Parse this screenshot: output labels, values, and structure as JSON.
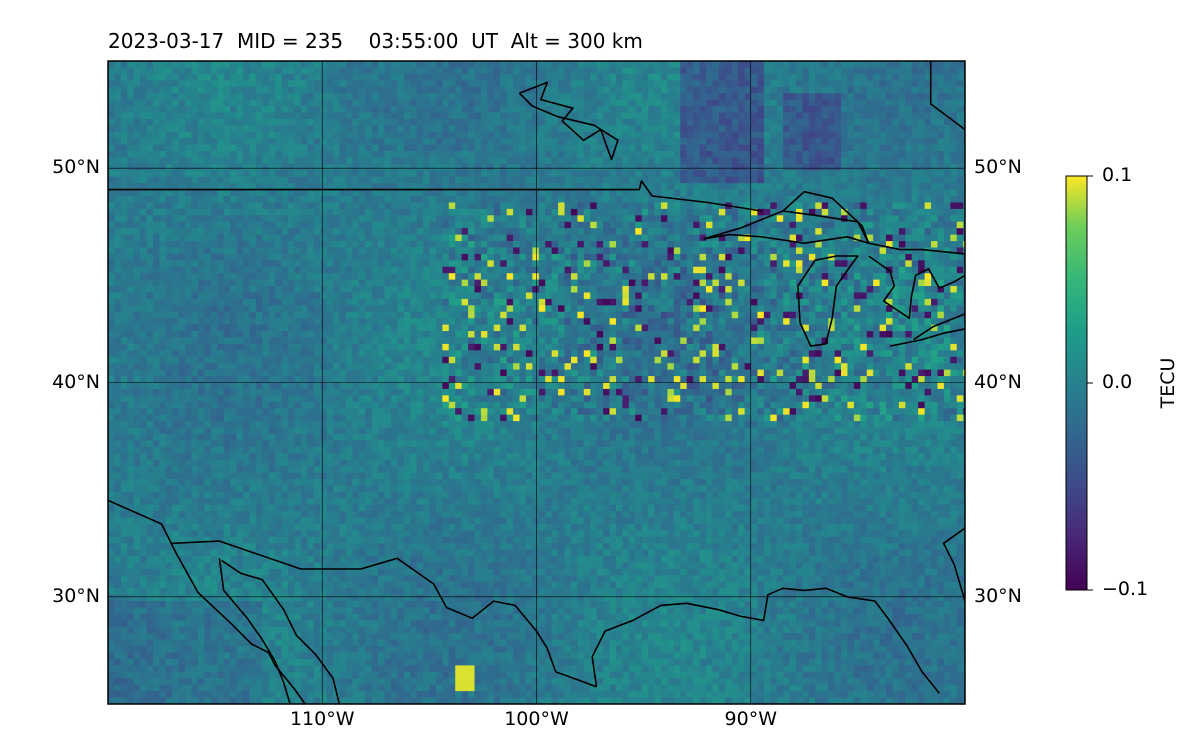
{
  "title": {
    "date": "2023-03-17",
    "mid": "MID = 235",
    "time": "03:55:00  UT",
    "alt": "Alt = 300 km"
  },
  "map": {
    "lon_range": [
      -120,
      -80
    ],
    "lat_range": [
      25,
      55
    ],
    "grid": true,
    "colormap": "viridis",
    "lat_gridlines": [
      {
        "value": 50,
        "label": "50°N"
      },
      {
        "value": 40,
        "label": "40°N"
      },
      {
        "value": 30,
        "label": "30°N"
      }
    ],
    "lon_gridlines": [
      {
        "value": -110,
        "label": "110°W"
      },
      {
        "value": -100,
        "label": "100°W"
      },
      {
        "value": -90,
        "label": "90°W"
      }
    ],
    "coastlines": [
      {
        "name": "us-canada-border",
        "points": [
          [
            -120,
            49
          ],
          [
            -95.2,
            49
          ],
          [
            -95.1,
            49.4
          ],
          [
            -94.6,
            48.7
          ],
          [
            -92,
            48.4
          ],
          [
            -89.5,
            48
          ]
        ]
      },
      {
        "name": "lake-superior-west",
        "points": [
          [
            -92.2,
            46.7
          ],
          [
            -90.5,
            47.2
          ],
          [
            -88.5,
            48
          ],
          [
            -87.5,
            48.9
          ],
          [
            -86.2,
            48.6
          ],
          [
            -84.8,
            47.3
          ],
          [
            -84.5,
            46.5
          ],
          [
            -85.5,
            46.8
          ],
          [
            -87.5,
            46.5
          ],
          [
            -89.5,
            46.8
          ],
          [
            -91,
            46.9
          ],
          [
            -92.2,
            46.7
          ]
        ]
      },
      {
        "name": "lake-superior-east",
        "points": [
          [
            -88.5,
            48
          ],
          [
            -87,
            47.8
          ],
          [
            -85,
            47.5
          ],
          [
            -84.5,
            46.5
          ],
          [
            -83,
            46.2
          ],
          [
            -82,
            46.2
          ],
          [
            -80,
            46
          ]
        ]
      },
      {
        "name": "lake-michigan",
        "points": [
          [
            -87.8,
            44.5
          ],
          [
            -87.7,
            42.8
          ],
          [
            -87.2,
            41.7
          ],
          [
            -86.5,
            41.8
          ],
          [
            -86.2,
            43
          ],
          [
            -86,
            44.5
          ],
          [
            -85.3,
            45.5
          ],
          [
            -85,
            45.9
          ],
          [
            -86,
            45.9
          ],
          [
            -87,
            45.7
          ],
          [
            -87.8,
            44.5
          ]
        ]
      },
      {
        "name": "lake-huron",
        "points": [
          [
            -84.5,
            45.9
          ],
          [
            -83.5,
            45.2
          ],
          [
            -83.3,
            44.5
          ],
          [
            -83.8,
            43.8
          ],
          [
            -82.6,
            43
          ],
          [
            -82.5,
            44
          ],
          [
            -82.3,
            45
          ],
          [
            -81.7,
            45.3
          ],
          [
            -81.2,
            44.4
          ],
          [
            -80.5,
            44.7
          ],
          [
            -80,
            45
          ]
        ]
      },
      {
        "name": "lake-erie",
        "points": [
          [
            -83.5,
            41.7
          ],
          [
            -82,
            42
          ],
          [
            -81,
            42.3
          ],
          [
            -80,
            42.5
          ]
        ]
      },
      {
        "name": "lake-ontario",
        "points": [
          [
            -80,
            43.2
          ],
          [
            -81.5,
            42.6
          ],
          [
            -82.4,
            42
          ]
        ]
      },
      {
        "name": "hudson-bay-inlet",
        "points": [
          [
            -100.8,
            53.5
          ],
          [
            -99.5,
            54
          ],
          [
            -99.8,
            53.2
          ],
          [
            -98.3,
            52.8
          ],
          [
            -98.8,
            52.2
          ],
          [
            -97.8,
            51.3
          ],
          [
            -97,
            51.8
          ],
          [
            -96.5,
            50.4
          ],
          [
            -96.2,
            51.3
          ],
          [
            -97.3,
            52
          ],
          [
            -99,
            52.4
          ],
          [
            -100.2,
            52.9
          ],
          [
            -100.8,
            53.5
          ]
        ]
      },
      {
        "name": "james-bay-edge",
        "points": [
          [
            -81.6,
            55
          ],
          [
            -81.6,
            53
          ],
          [
            -80,
            51.8
          ]
        ]
      },
      {
        "name": "gulf-coast",
        "points": [
          [
            -97.2,
            25.8
          ],
          [
            -97.4,
            27.2
          ],
          [
            -96.8,
            28.4
          ],
          [
            -95.5,
            28.9
          ],
          [
            -94.2,
            29.6
          ],
          [
            -93,
            29.7
          ],
          [
            -91.5,
            29.4
          ],
          [
            -90.5,
            29.1
          ],
          [
            -89.4,
            28.9
          ],
          [
            -89.2,
            30.1
          ],
          [
            -88.5,
            30.4
          ],
          [
            -87.5,
            30.3
          ],
          [
            -86.5,
            30.4
          ],
          [
            -85.5,
            30
          ],
          [
            -84.2,
            29.8
          ],
          [
            -83.6,
            29
          ],
          [
            -82.7,
            27.7
          ],
          [
            -82,
            26.5
          ],
          [
            -81.2,
            25.5
          ]
        ]
      },
      {
        "name": "florida-east",
        "points": [
          [
            -80,
            29.8
          ],
          [
            -80.5,
            31.5
          ],
          [
            -81,
            32.5
          ],
          [
            -80,
            33.2
          ]
        ]
      },
      {
        "name": "us-mexico-border",
        "points": [
          [
            -117,
            32.5
          ],
          [
            -114.8,
            32.6
          ],
          [
            -111,
            31.3
          ],
          [
            -108.2,
            31.3
          ],
          [
            -106.5,
            31.8
          ],
          [
            -104.8,
            30.6
          ],
          [
            -104.2,
            29.5
          ],
          [
            -103,
            29
          ],
          [
            -102,
            29.8
          ],
          [
            -101,
            29.6
          ],
          [
            -100,
            28.4
          ],
          [
            -99.5,
            27.6
          ],
          [
            -99.1,
            26.5
          ],
          [
            -98,
            26.1
          ],
          [
            -97.2,
            25.8
          ]
        ]
      },
      {
        "name": "pacific-coast",
        "points": [
          [
            -120,
            34.5
          ],
          [
            -117.5,
            33.4
          ],
          [
            -116.8,
            32
          ],
          [
            -115.8,
            30.2
          ],
          [
            -114.2,
            28.7
          ],
          [
            -113.3,
            27.8
          ],
          [
            -112.5,
            27.4
          ],
          [
            -112.2,
            26.8
          ],
          [
            -111.3,
            25.7
          ],
          [
            -110.8,
            25
          ]
        ]
      },
      {
        "name": "gulf-of-california",
        "points": [
          [
            -114.8,
            31.8
          ],
          [
            -114.6,
            30.3
          ],
          [
            -113.5,
            29
          ],
          [
            -112.8,
            28
          ],
          [
            -112.2,
            27
          ],
          [
            -111.8,
            26
          ],
          [
            -111.5,
            25
          ]
        ]
      },
      {
        "name": "sonora-coast",
        "points": [
          [
            -114.7,
            31.7
          ],
          [
            -113.8,
            31.1
          ],
          [
            -112.8,
            30.8
          ],
          [
            -111.8,
            29.4
          ],
          [
            -111.2,
            28.2
          ],
          [
            -110.3,
            27.3
          ],
          [
            -109.5,
            26.2
          ],
          [
            -109.2,
            25
          ]
        ]
      }
    ]
  },
  "colorbar": {
    "min": -0.1,
    "max": 0.1,
    "label": "TECU",
    "ticks": [
      {
        "value": 0.1,
        "label": "0.1"
      },
      {
        "value": 0.0,
        "label": "0.0"
      },
      {
        "value": -0.1,
        "label": "−0.1"
      }
    ]
  }
}
